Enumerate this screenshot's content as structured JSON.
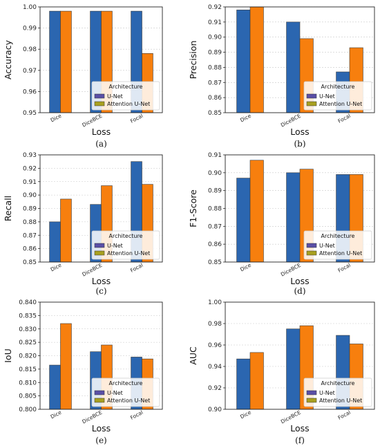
{
  "colors": {
    "unet": "#2b66b0",
    "attention_unet": "#f77f0e",
    "legend_unet_patch": "#5a4fa6",
    "legend_attention_patch": "#a8a020",
    "grid": "#c8c8c8"
  },
  "legend": {
    "title": "Architecture",
    "entries": [
      "U-Net",
      "Attention U-Net"
    ]
  },
  "chart_data": [
    {
      "type": "bar",
      "caption": "(a)",
      "xlabel": "Loss",
      "ylabel": "Accuracy",
      "categories": [
        "Dice",
        "DiceBCE",
        "Focal"
      ],
      "series": [
        {
          "name": "U-Net",
          "values": [
            0.998,
            0.998,
            0.998
          ]
        },
        {
          "name": "Attention U-Net",
          "values": [
            0.998,
            0.998,
            0.978
          ]
        }
      ],
      "ylim": [
        0.95,
        1.0
      ],
      "yticks": [
        "0.95",
        "0.96",
        "0.97",
        "0.98",
        "0.99",
        "1.00"
      ],
      "grid": true,
      "legend_position": "lower-right"
    },
    {
      "type": "bar",
      "caption": "(b)",
      "xlabel": "Loss",
      "ylabel": "Precision",
      "categories": [
        "Dice",
        "DiceBCE",
        "Focal"
      ],
      "series": [
        {
          "name": "U-Net",
          "values": [
            0.918,
            0.91,
            0.877
          ]
        },
        {
          "name": "Attention U-Net",
          "values": [
            0.92,
            0.899,
            0.893
          ]
        }
      ],
      "ylim": [
        0.85,
        0.92
      ],
      "yticks": [
        "0.85",
        "0.86",
        "0.87",
        "0.88",
        "0.89",
        "0.90",
        "0.91",
        "0.92"
      ],
      "grid": true,
      "legend_position": "lower-right"
    },
    {
      "type": "bar",
      "caption": "(c)",
      "xlabel": "Loss",
      "ylabel": "Recall",
      "categories": [
        "Dice",
        "DiceBCE",
        "Focal"
      ],
      "series": [
        {
          "name": "U-Net",
          "values": [
            0.88,
            0.893,
            0.925
          ]
        },
        {
          "name": "Attention U-Net",
          "values": [
            0.897,
            0.907,
            0.908
          ]
        }
      ],
      "ylim": [
        0.85,
        0.93
      ],
      "yticks": [
        "0.85",
        "0.86",
        "0.87",
        "0.88",
        "0.89",
        "0.90",
        "0.91",
        "0.92",
        "0.93"
      ],
      "grid": true,
      "legend_position": "lower-right"
    },
    {
      "type": "bar",
      "caption": "(d)",
      "xlabel": "Loss",
      "ylabel": "F1-Score",
      "categories": [
        "Dice",
        "DiceBCE",
        "Focal"
      ],
      "series": [
        {
          "name": "U-Net",
          "values": [
            0.897,
            0.9,
            0.899
          ]
        },
        {
          "name": "Attention U-Net",
          "values": [
            0.907,
            0.902,
            0.899
          ]
        }
      ],
      "ylim": [
        0.85,
        0.91
      ],
      "yticks": [
        "0.85",
        "0.86",
        "0.87",
        "0.88",
        "0.89",
        "0.90",
        "0.91"
      ],
      "grid": true,
      "legend_position": "lower-right"
    },
    {
      "type": "bar",
      "caption": "(e)",
      "xlabel": "Loss",
      "ylabel": "IoU",
      "categories": [
        "Dice",
        "DiceBCE",
        "Focal"
      ],
      "series": [
        {
          "name": "U-Net",
          "values": [
            0.8165,
            0.8215,
            0.8195
          ]
        },
        {
          "name": "Attention U-Net",
          "values": [
            0.832,
            0.824,
            0.8188
          ]
        }
      ],
      "ylim": [
        0.8,
        0.84
      ],
      "yticks": [
        "0.800",
        "0.805",
        "0.810",
        "0.815",
        "0.820",
        "0.825",
        "0.830",
        "0.835",
        "0.840"
      ],
      "grid": true,
      "legend_position": "lower-right"
    },
    {
      "type": "bar",
      "caption": "(f)",
      "xlabel": "Loss",
      "ylabel": "AUC",
      "categories": [
        "Dice",
        "DiceBCE",
        "Focal"
      ],
      "series": [
        {
          "name": "U-Net",
          "values": [
            0.947,
            0.975,
            0.969
          ]
        },
        {
          "name": "Attention U-Net",
          "values": [
            0.953,
            0.978,
            0.961
          ]
        }
      ],
      "ylim": [
        0.9,
        1.0
      ],
      "yticks": [
        "0.90",
        "0.92",
        "0.94",
        "0.96",
        "0.98",
        "1.00"
      ],
      "grid": true,
      "legend_position": "lower-right"
    }
  ]
}
